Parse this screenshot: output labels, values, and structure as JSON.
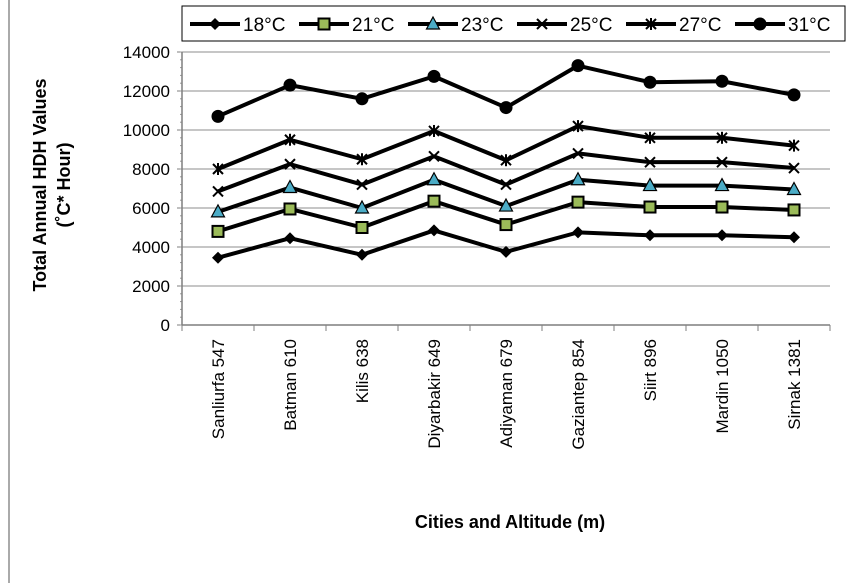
{
  "chart_data": {
    "type": "line",
    "xlabel": "Cities and Altitude (m)",
    "ylabel_lines": [
      "Total Annual HDH Values",
      "(˚C* Hour)"
    ],
    "categories": [
      "Sanliurfa 547",
      "Batman 610",
      "Kilis 638",
      "Diyarbakir 649",
      "Adiyaman 679",
      "Gaziantep 854",
      "Siirt 896",
      "Mardin 1050",
      "Sirnak 1381"
    ],
    "ylim": [
      0,
      14000
    ],
    "yticks": [
      0,
      2000,
      4000,
      6000,
      8000,
      10000,
      12000,
      14000
    ],
    "grid": true,
    "legend_position": "top",
    "series": [
      {
        "name": "18°C",
        "marker": "diamond",
        "values": [
          3450,
          4450,
          3600,
          4850,
          3750,
          4750,
          4600,
          4600,
          4500
        ]
      },
      {
        "name": "21°C",
        "marker": "square",
        "values": [
          4800,
          5950,
          5000,
          6350,
          5150,
          6300,
          6050,
          6050,
          5900
        ]
      },
      {
        "name": "23°C",
        "marker": "triangle",
        "values": [
          5800,
          7050,
          6000,
          7450,
          6100,
          7450,
          7150,
          7150,
          6950
        ]
      },
      {
        "name": "25°C",
        "marker": "x",
        "values": [
          6850,
          8250,
          7200,
          8650,
          7200,
          8800,
          8350,
          8350,
          8050
        ]
      },
      {
        "name": "27°C",
        "marker": "star",
        "values": [
          8000,
          9500,
          8500,
          9950,
          8450,
          10200,
          9600,
          9600,
          9200
        ]
      },
      {
        "name": "31°C",
        "marker": "circle",
        "values": [
          10700,
          12300,
          11600,
          12750,
          11150,
          13300,
          12450,
          12500,
          11800
        ]
      }
    ]
  }
}
